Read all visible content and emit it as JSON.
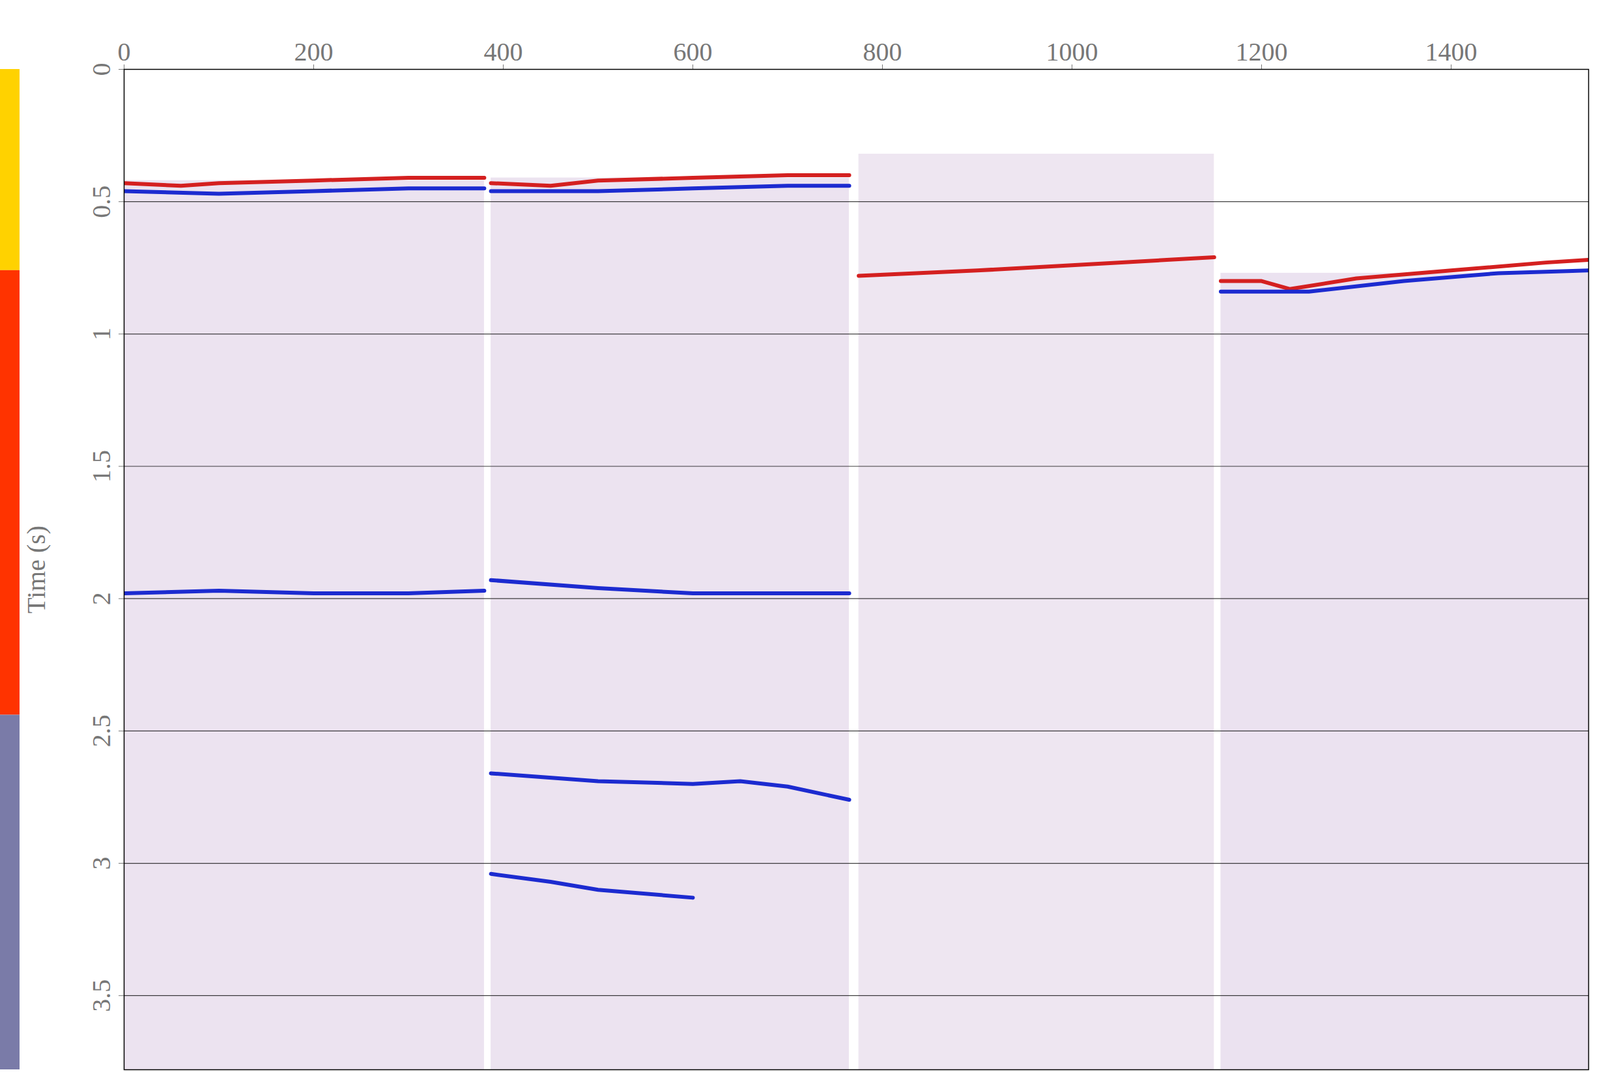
{
  "chart_data": {
    "type": "seismic_section",
    "y_label": "Time (s)",
    "xlim": [
      0,
      1545
    ],
    "xticks": [
      0,
      200,
      400,
      600,
      800,
      1000,
      1200,
      1400
    ],
    "ylim": [
      0,
      3.78
    ],
    "yticks": [
      0,
      0.5,
      1,
      1.5,
      2,
      2.5,
      3,
      3.5
    ],
    "grid": true,
    "panels": [
      {
        "x1": 0,
        "x2": 380,
        "y1": 0.42,
        "y2": 3.78,
        "color": "#ece3f0"
      },
      {
        "x1": 387,
        "x2": 765,
        "y1": 0.41,
        "y2": 3.78,
        "color": "#ece3f0"
      },
      {
        "x1": 775,
        "x2": 1150,
        "y1": 0.32,
        "y2": 3.78,
        "color": "#eee6f1"
      },
      {
        "x1": 1157,
        "x2": 1545,
        "y1": 0.77,
        "y2": 3.78,
        "color": "#ebe2f0"
      }
    ],
    "horizons": [
      {
        "x": [
          0,
          60,
          100,
          200,
          300,
          380
        ],
        "values": [
          0.43,
          0.44,
          0.43,
          0.42,
          0.41,
          0.41
        ],
        "color": "#d42020"
      },
      {
        "x": [
          387,
          450,
          500,
          600,
          700,
          765
        ],
        "values": [
          0.43,
          0.44,
          0.42,
          0.41,
          0.4,
          0.4
        ],
        "color": "#d42020"
      },
      {
        "x": [
          775,
          900,
          1000,
          1100,
          1150
        ],
        "values": [
          0.78,
          0.76,
          0.74,
          0.72,
          0.71
        ],
        "color": "#d42020"
      },
      {
        "x": [
          1157,
          1200,
          1230,
          1300,
          1400,
          1500,
          1545
        ],
        "values": [
          0.8,
          0.8,
          0.83,
          0.79,
          0.76,
          0.73,
          0.72
        ],
        "color": "#d42020"
      },
      {
        "x": [
          0,
          100,
          200,
          300,
          380
        ],
        "values": [
          0.46,
          0.47,
          0.46,
          0.45,
          0.45
        ],
        "color": "#1c2bd0"
      },
      {
        "x": [
          387,
          500,
          600,
          700,
          765
        ],
        "values": [
          0.46,
          0.46,
          0.45,
          0.44,
          0.44
        ],
        "color": "#1c2bd0"
      },
      {
        "x": [
          1157,
          1250,
          1350,
          1450,
          1545
        ],
        "values": [
          0.84,
          0.84,
          0.8,
          0.77,
          0.76
        ],
        "color": "#1c2bd0"
      },
      {
        "x": [
          0,
          100,
          200,
          300,
          380
        ],
        "values": [
          1.98,
          1.97,
          1.98,
          1.98,
          1.97
        ],
        "color": "#1c2bd0"
      },
      {
        "x": [
          387,
          500,
          600,
          700,
          765
        ],
        "values": [
          1.93,
          1.96,
          1.98,
          1.98,
          1.98
        ],
        "color": "#1c2bd0"
      },
      {
        "x": [
          387,
          500,
          600,
          650,
          700,
          765
        ],
        "values": [
          2.66,
          2.69,
          2.7,
          2.69,
          2.71,
          2.76
        ],
        "color": "#1c2bd0"
      },
      {
        "x": [
          387,
          450,
          500,
          600
        ],
        "values": [
          3.04,
          3.07,
          3.1,
          3.13
        ],
        "color": "#1c2bd0"
      }
    ],
    "zones": [
      {
        "from": 0,
        "to": 0.76,
        "color": "#ffd200"
      },
      {
        "from": 0.76,
        "to": 2.44,
        "color": "#ff3300"
      },
      {
        "from": 2.44,
        "to": 3.78,
        "color": "#7a7ba8"
      }
    ]
  }
}
